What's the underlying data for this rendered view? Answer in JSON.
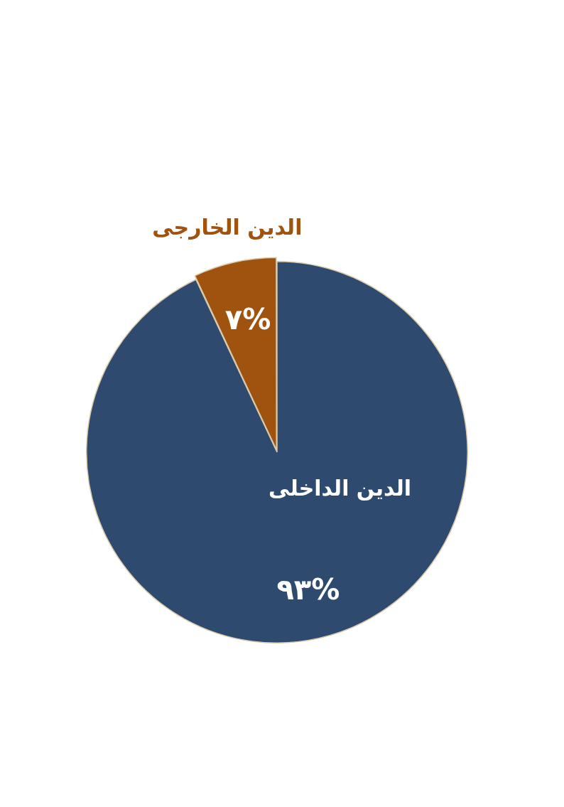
{
  "chart_data": {
    "type": "pie",
    "categories": [
      "الدين الداخلى",
      "الدين الخارجى"
    ],
    "values": [
      93,
      7
    ],
    "value_labels": [
      "٩٣%",
      "٧%"
    ],
    "colors": [
      "#2e4a6e",
      "#a0520f"
    ],
    "legend": false
  }
}
